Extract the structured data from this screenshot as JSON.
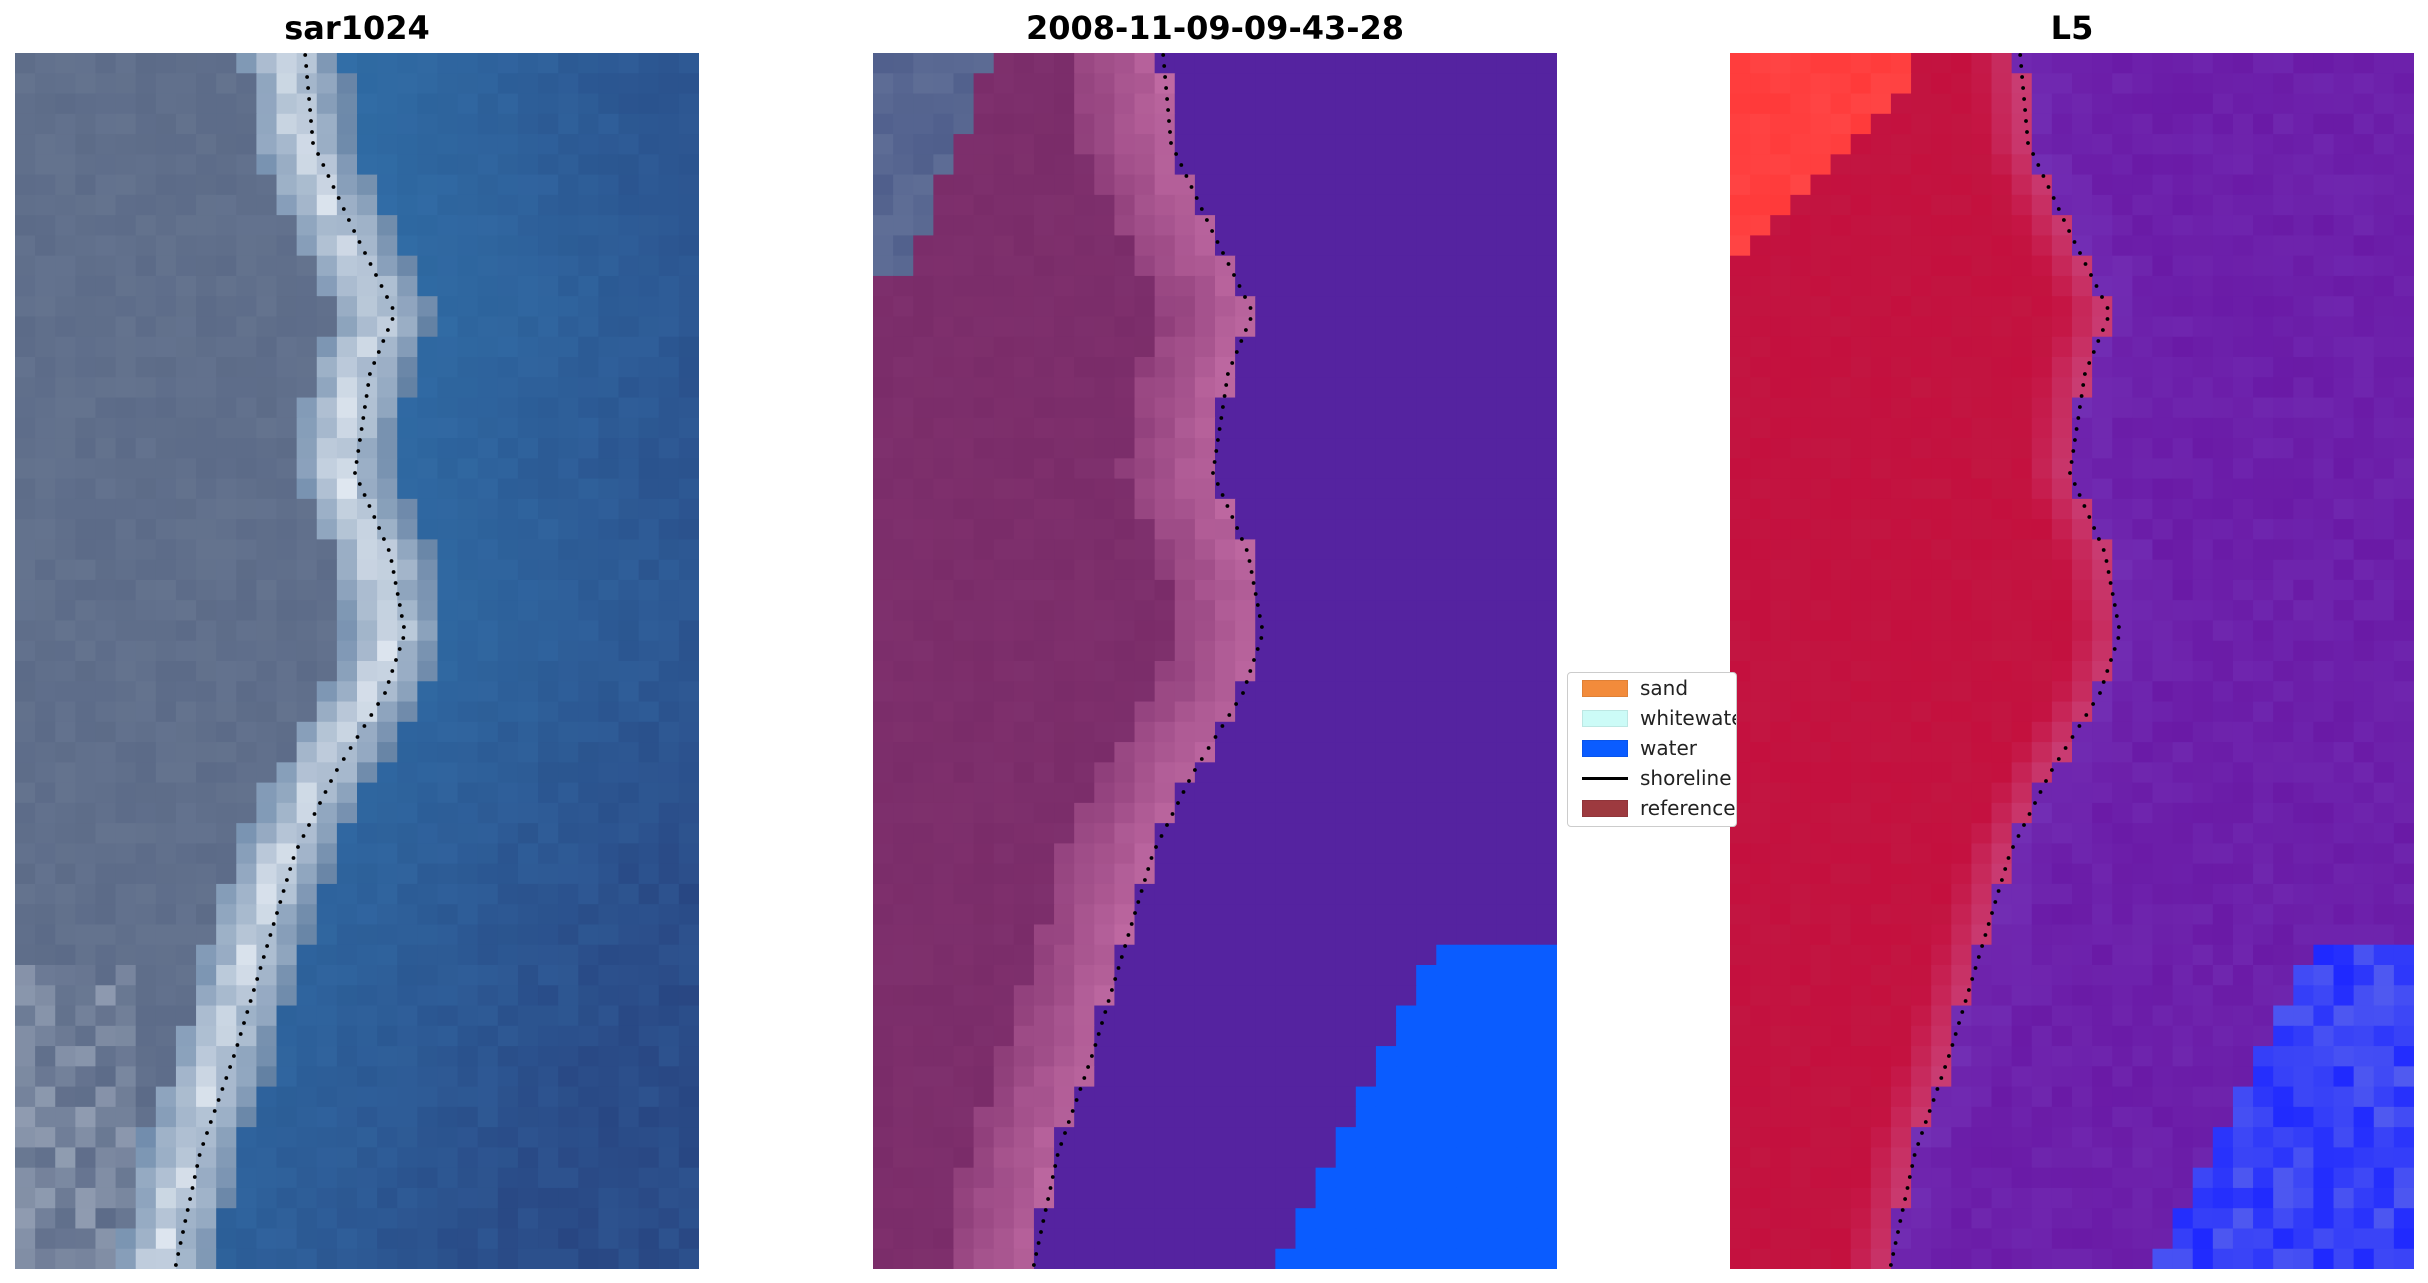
{
  "panels": [
    {
      "title": "sar1024",
      "kind": "rgb-image"
    },
    {
      "title": "2008-11-09-09-43-28",
      "kind": "classified-image"
    },
    {
      "title": "L5",
      "kind": "index-image"
    }
  ],
  "legend": {
    "items": [
      {
        "label": "sand",
        "type": "patch",
        "color": "#f28b3b"
      },
      {
        "label": "whitewater",
        "type": "patch",
        "color": "#ccfbf7"
      },
      {
        "label": "water",
        "type": "patch",
        "color": "#0a5cff"
      },
      {
        "label": "shoreline",
        "type": "line",
        "color": "#000000"
      },
      {
        "label": "reference",
        "type": "patch",
        "color": "#9d3a3f"
      }
    ]
  },
  "colors": {
    "sea_blue": "#2f6ea6",
    "land_grey": "#5c6b88",
    "beach_white": "#e3eaf2",
    "class_land": "#7a2c69",
    "class_beach": "#c06aa3",
    "class_sea": "#5523a0",
    "class_water": "#0a5cff",
    "index_land": "#c4103e",
    "index_sea": "#6a1aa6",
    "index_corner": "#ff3a3a"
  }
}
